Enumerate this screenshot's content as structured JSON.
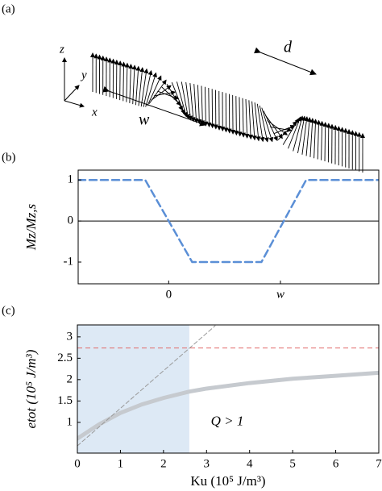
{
  "diagram": {
    "panel_label": "(a)",
    "axis_labels": [
      "z",
      "y",
      "x"
    ],
    "width_label": "w",
    "period_label": "d"
  },
  "chart_data": [
    {
      "type": "line",
      "panel_label": "(b)",
      "ylabel": "Mz/Mz,s",
      "x": [
        -0.81,
        -0.21,
        0.21,
        0.83,
        1.23,
        1.88
      ],
      "series": [
        {
          "color": "#5b8fd6",
          "linestyle": "dashed",
          "values": [
            1,
            1,
            -1,
            -1,
            1,
            1
          ]
        }
      ],
      "xlim": [
        -0.81,
        1.88
      ],
      "xticks": [
        0,
        {
          "value": 1,
          "label": "w"
        }
      ],
      "ylim": [
        -1.53,
        1.24
      ],
      "yticks": [
        -1,
        0,
        1
      ],
      "hlines": [
        {
          "y": 0,
          "color": "#000000"
        }
      ]
    },
    {
      "type": "line",
      "panel_label": "(c)",
      "ylabel": "etot (10⁵ J/m³)",
      "xlabel": "Ku (10⁵ J/m³)",
      "series": [
        {
          "color": "#c6cacf",
          "linestyle": "solid",
          "x": [
            0,
            0.5,
            1,
            1.5,
            2,
            2.6,
            3,
            4,
            5,
            6,
            7
          ],
          "values": [
            0.62,
            0.95,
            1.22,
            1.42,
            1.57,
            1.72,
            1.79,
            1.92,
            2.02,
            2.09,
            2.16
          ]
        },
        {
          "color": "#999999",
          "linestyle": "dashed",
          "x": [
            0,
            3.2
          ],
          "values": [
            0.45,
            3.26
          ]
        }
      ],
      "xlim": [
        0,
        7
      ],
      "xticks": [
        0,
        1,
        2,
        3,
        4,
        5,
        6,
        7
      ],
      "ylim": [
        0.28,
        3.28
      ],
      "yticks": [
        1,
        1.5,
        2,
        2.5,
        3
      ],
      "hlines": [
        {
          "y": 2.74,
          "color": "#e06a6a"
        }
      ],
      "span": {
        "x": [
          0,
          2.6
        ],
        "color": "#dde9f5"
      },
      "annotation": {
        "text": "Q > 1",
        "x": 3.1,
        "y": 1.0
      }
    }
  ]
}
